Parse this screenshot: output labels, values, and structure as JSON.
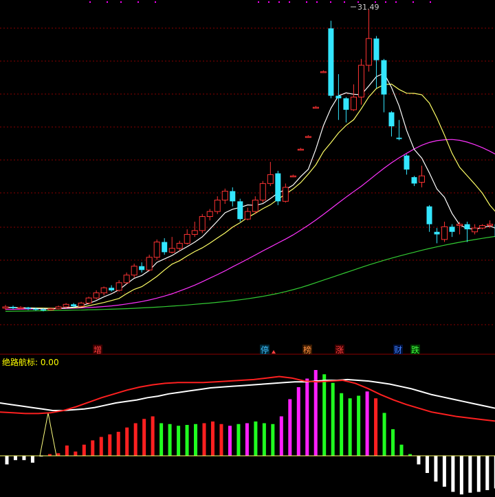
{
  "indicator": {
    "label": "绝路航标: 0.00"
  },
  "peak_label": "31.49",
  "markers": [
    {
      "text": "增",
      "color": "#ff4040",
      "bg": "#3a0000"
    },
    {
      "text": "停",
      "color": "#40c0ff",
      "bg": "#002a3a"
    },
    {
      "text": "榜",
      "color": "#ff9040",
      "bg": "#3a1a00"
    },
    {
      "text": "涨",
      "color": "#ff4040",
      "bg": "#3a0000"
    },
    {
      "text": "财",
      "color": "#4080ff",
      "bg": "#00103a"
    },
    {
      "text": "跌",
      "color": "#40ff40",
      "bg": "#003a00"
    }
  ],
  "colors": {
    "up": "#ff3333",
    "down": "#33e6ff",
    "ma5": "#ffffff",
    "ma10": "#ffff66",
    "ma20": "#ff33ff",
    "ma60": "#33cc33",
    "grid": "#8b0000",
    "hist_red": "#ff2020",
    "hist_green": "#20ff20",
    "hist_magenta": "#ff20ff",
    "hist_white": "#ffffff",
    "ind_red": "#ff2020",
    "ind_white": "#ffffff"
  },
  "chart_data": [
    {
      "type": "candlestick",
      "title": "",
      "fields": [
        "open",
        "close",
        "high",
        "low"
      ],
      "peak": 31.49,
      "candles": [
        [
          8.0,
          8.1,
          8.25,
          7.85
        ],
        [
          8.1,
          8.0,
          8.2,
          7.9
        ],
        [
          8.0,
          8.05,
          8.15,
          7.9
        ],
        [
          8.05,
          7.95,
          8.1,
          7.85
        ],
        [
          7.95,
          7.9,
          8.05,
          7.8
        ],
        [
          7.9,
          7.85,
          8.0,
          7.75
        ],
        [
          7.85,
          7.95,
          8.05,
          7.8
        ],
        [
          7.95,
          8.1,
          8.2,
          7.9
        ],
        [
          8.1,
          8.3,
          8.4,
          8.0
        ],
        [
          8.3,
          8.15,
          8.4,
          8.05
        ],
        [
          8.15,
          8.4,
          8.5,
          8.1
        ],
        [
          8.4,
          8.8,
          8.9,
          8.3
        ],
        [
          8.8,
          9.2,
          9.4,
          8.7
        ],
        [
          9.2,
          9.6,
          9.7,
          9.0
        ],
        [
          9.6,
          9.4,
          9.8,
          9.3
        ],
        [
          9.4,
          10.0,
          10.2,
          9.3
        ],
        [
          10.0,
          10.6,
          10.8,
          9.9
        ],
        [
          10.6,
          11.3,
          11.5,
          10.4
        ],
        [
          11.3,
          11.0,
          11.6,
          10.8
        ],
        [
          11.0,
          12.0,
          12.2,
          10.9
        ],
        [
          12.0,
          13.2,
          13.4,
          11.8
        ],
        [
          13.2,
          12.4,
          13.5,
          12.2
        ],
        [
          12.4,
          12.7,
          13.6,
          12.3
        ],
        [
          12.7,
          13.1,
          13.3,
          12.5
        ],
        [
          13.1,
          13.8,
          14.2,
          13.0
        ],
        [
          13.8,
          14.1,
          14.8,
          13.6
        ],
        [
          14.1,
          15.2,
          15.4,
          13.9
        ],
        [
          15.2,
          15.6,
          15.8,
          14.9
        ],
        [
          15.6,
          16.5,
          16.8,
          15.4
        ],
        [
          16.5,
          17.2,
          17.4,
          16.2
        ],
        [
          17.2,
          16.4,
          17.5,
          16.0
        ],
        [
          16.4,
          15.0,
          16.6,
          14.8
        ],
        [
          15.0,
          15.6,
          15.9,
          14.9
        ],
        [
          15.6,
          16.5,
          16.8,
          15.4
        ],
        [
          16.5,
          17.8,
          18.0,
          16.3
        ],
        [
          17.8,
          18.5,
          19.5,
          17.6
        ],
        [
          18.6,
          16.4,
          18.8,
          16.1
        ],
        [
          16.4,
          17.5,
          17.8,
          16.3
        ],
        [
          18.4,
          18.4,
          18.5,
          18.3
        ],
        [
          20.5,
          20.5,
          20.6,
          20.4
        ],
        [
          21.5,
          21.5,
          21.6,
          21.4
        ],
        [
          23.8,
          23.8,
          23.9,
          23.7
        ],
        [
          26.6,
          26.6,
          26.7,
          26.5
        ],
        [
          30.0,
          24.7,
          30.6,
          24.5
        ],
        [
          24.7,
          24.5,
          26.4,
          22.8
        ],
        [
          24.5,
          23.6,
          24.6,
          22.6
        ],
        [
          23.6,
          24.6,
          25.6,
          23.5
        ],
        [
          24.6,
          27.1,
          27.6,
          24.0
        ],
        [
          27.1,
          29.2,
          31.49,
          26.6
        ],
        [
          29.2,
          27.5,
          29.4,
          25.3
        ],
        [
          27.5,
          24.8,
          27.6,
          23.4
        ],
        [
          23.4,
          22.3,
          23.5,
          21.5
        ],
        [
          21.4,
          21.3,
          22.8,
          21.2
        ],
        [
          20.0,
          18.9,
          20.1,
          18.5
        ],
        [
          18.3,
          17.8,
          18.4,
          17.6
        ],
        [
          17.9,
          18.4,
          19.2,
          17.5
        ],
        [
          16.0,
          14.6,
          16.1,
          14.0
        ],
        [
          14.0,
          13.8,
          14.3,
          13.1
        ],
        [
          13.4,
          14.4,
          14.8,
          13.2
        ],
        [
          14.4,
          14.0,
          14.6,
          13.6
        ],
        [
          14.5,
          14.6,
          14.8,
          13.8
        ],
        [
          14.6,
          14.2,
          14.8,
          13.2
        ],
        [
          14.0,
          14.3,
          14.6,
          13.8
        ],
        [
          14.3,
          14.5,
          14.6,
          14.2
        ],
        [
          14.5,
          14.6,
          14.9,
          14.3
        ],
        [
          14.6,
          13.6,
          14.7,
          13.4
        ]
      ],
      "ma5": [
        8.06,
        8.04,
        8.02,
        8.0,
        7.97,
        7.95,
        7.95,
        7.97,
        8.02,
        8.08,
        8.19,
        8.37,
        8.6,
        8.89,
        9.13,
        9.44,
        9.91,
        10.35,
        10.57,
        10.97,
        11.6,
        11.87,
        12.14,
        12.5,
        12.83,
        13.19,
        13.61,
        14.21,
        14.85,
        15.5,
        15.78,
        15.92,
        16.12,
        16.08,
        16.22,
        16.62,
        17.05,
        17.32,
        17.68,
        18.35,
        18.92,
        20.5,
        22.35,
        23.73,
        24.7,
        24.93,
        24.82,
        24.78,
        25.47,
        26.2,
        26.48,
        25.35,
        23.9,
        21.97,
        20.48,
        19.8,
        18.64,
        17.37,
        16.71,
        15.45,
        14.55,
        14.26,
        14.21,
        14.33,
        14.46,
        14.23
      ],
      "ma10": [
        8.05,
        8.04,
        8.03,
        8.02,
        8.01,
        8.0,
        7.99,
        7.99,
        8.01,
        8.03,
        8.07,
        8.19,
        8.31,
        8.44,
        8.6,
        8.76,
        9.14,
        9.48,
        9.69,
        10.08,
        10.5,
        11.0,
        11.46,
        11.73,
        12.1,
        12.45,
        12.74,
        13.11,
        13.52,
        13.91,
        14.37,
        14.72,
        15.13,
        15.46,
        15.82,
        16.13,
        16.56,
        16.97,
        17.37,
        17.87,
        18.54,
        19.27,
        20.3,
        21.02,
        21.78,
        22.37,
        22.82,
        23.67,
        24.61,
        25.27,
        25.58,
        25.62,
        25.2,
        24.9,
        24.89,
        24.78,
        24.13,
        22.95,
        21.61,
        20.18,
        19.07,
        18.41,
        17.75,
        17.04,
        16.09,
        15.41
      ],
      "ma20": [
        7.9,
        7.91,
        7.92,
        7.93,
        7.94,
        7.95,
        7.96,
        7.97,
        7.98,
        8.0,
        8.02,
        8.05,
        8.08,
        8.13,
        8.18,
        8.24,
        8.33,
        8.42,
        8.52,
        8.64,
        8.79,
        8.95,
        9.13,
        9.35,
        9.57,
        9.81,
        10.08,
        10.36,
        10.64,
        10.93,
        11.25,
        11.55,
        11.86,
        12.18,
        12.5,
        12.81,
        13.12,
        13.43,
        13.76,
        14.13,
        14.52,
        14.93,
        15.37,
        15.82,
        16.28,
        16.73,
        17.16,
        17.58,
        18.05,
        18.53,
        19.0,
        19.43,
        19.82,
        20.18,
        20.52,
        20.81,
        21.03,
        21.17,
        21.24,
        21.26,
        21.2,
        21.06,
        20.86,
        20.62,
        20.34,
        20.02
      ],
      "ma60": [
        7.75,
        7.76,
        7.77,
        7.78,
        7.79,
        7.8,
        7.81,
        7.82,
        7.83,
        7.84,
        7.85,
        7.87,
        7.88,
        7.9,
        7.92,
        7.94,
        7.96,
        7.99,
        8.02,
        8.05,
        8.08,
        8.12,
        8.16,
        8.2,
        8.25,
        8.3,
        8.35,
        8.4,
        8.46,
        8.52,
        8.59,
        8.66,
        8.74,
        8.83,
        8.93,
        9.04,
        9.16,
        9.3,
        9.45,
        9.62,
        9.8,
        10.0,
        10.2,
        10.4,
        10.6,
        10.8,
        11.0,
        11.2,
        11.4,
        11.58,
        11.76,
        11.93,
        12.09,
        12.25,
        12.4,
        12.55,
        12.69,
        12.82,
        12.95,
        13.07,
        13.18,
        13.29,
        13.39,
        13.49,
        13.58,
        13.67
      ]
    },
    {
      "type": "bar",
      "title": "绝路航标: 0.00",
      "value": 0.0,
      "histogram": [
        {
          "v": -0.1,
          "c": "white"
        },
        {
          "v": -0.05,
          "c": "white"
        },
        {
          "v": -0.05,
          "c": "white"
        },
        {
          "v": -0.08,
          "c": "white"
        },
        {
          "v": 0,
          "c": "white"
        },
        {
          "v": 0.02,
          "c": "red"
        },
        {
          "v": 0.03,
          "c": "red"
        },
        {
          "v": 0.12,
          "c": "red"
        },
        {
          "v": 0.05,
          "c": "red"
        },
        {
          "v": 0.13,
          "c": "red"
        },
        {
          "v": 0.18,
          "c": "red"
        },
        {
          "v": 0.22,
          "c": "red"
        },
        {
          "v": 0.25,
          "c": "red"
        },
        {
          "v": 0.28,
          "c": "red"
        },
        {
          "v": 0.33,
          "c": "red"
        },
        {
          "v": 0.38,
          "c": "red"
        },
        {
          "v": 0.43,
          "c": "red"
        },
        {
          "v": 0.46,
          "c": "red"
        },
        {
          "v": 0.38,
          "c": "green"
        },
        {
          "v": 0.37,
          "c": "green"
        },
        {
          "v": 0.35,
          "c": "green"
        },
        {
          "v": 0.36,
          "c": "green"
        },
        {
          "v": 0.37,
          "c": "green"
        },
        {
          "v": 0.38,
          "c": "red"
        },
        {
          "v": 0.4,
          "c": "red"
        },
        {
          "v": 0.37,
          "c": "red"
        },
        {
          "v": 0.35,
          "c": "magenta"
        },
        {
          "v": 0.37,
          "c": "green"
        },
        {
          "v": 0.38,
          "c": "magenta"
        },
        {
          "v": 0.4,
          "c": "green"
        },
        {
          "v": 0.38,
          "c": "green"
        },
        {
          "v": 0.37,
          "c": "green"
        },
        {
          "v": 0.46,
          "c": "magenta"
        },
        {
          "v": 0.66,
          "c": "magenta"
        },
        {
          "v": 0.8,
          "c": "magenta"
        },
        {
          "v": 0.9,
          "c": "magenta"
        },
        {
          "v": 1.0,
          "c": "magenta"
        },
        {
          "v": 0.95,
          "c": "green"
        },
        {
          "v": 0.85,
          "c": "green"
        },
        {
          "v": 0.73,
          "c": "green"
        },
        {
          "v": 0.67,
          "c": "green"
        },
        {
          "v": 0.7,
          "c": "green"
        },
        {
          "v": 0.75,
          "c": "magenta"
        },
        {
          "v": 0.67,
          "c": "red"
        },
        {
          "v": 0.5,
          "c": "green"
        },
        {
          "v": 0.31,
          "c": "green"
        },
        {
          "v": 0.13,
          "c": "green"
        },
        {
          "v": 0.02,
          "c": "green"
        },
        {
          "v": -0.1,
          "c": "white"
        },
        {
          "v": -0.2,
          "c": "white"
        },
        {
          "v": -0.3,
          "c": "white"
        },
        {
          "v": -0.36,
          "c": "white"
        },
        {
          "v": -0.42,
          "c": "white"
        },
        {
          "v": -0.45,
          "c": "white"
        },
        {
          "v": -0.43,
          "c": "white"
        },
        {
          "v": -0.42,
          "c": "white"
        },
        {
          "v": -0.4,
          "c": "white"
        },
        {
          "v": -0.38,
          "c": "white"
        }
      ],
      "line_white": [
        0.7,
        0.68,
        0.66,
        0.64,
        0.62,
        0.6,
        0.6,
        0.61,
        0.62,
        0.64,
        0.67,
        0.7,
        0.72,
        0.74,
        0.77,
        0.79,
        0.82,
        0.84,
        0.86,
        0.88,
        0.9,
        0.91,
        0.92,
        0.93,
        0.94,
        0.95,
        0.96,
        0.97,
        0.98,
        0.98,
        0.99,
        1.0,
        1.0,
        1.01,
        1.0,
        0.99,
        0.97,
        0.95,
        0.92,
        0.89,
        0.85,
        0.81,
        0.78,
        0.75,
        0.72,
        0.69,
        0.66,
        0.63
      ],
      "line_red": [
        0.58,
        0.57,
        0.56,
        0.56,
        0.57,
        0.6,
        0.65,
        0.71,
        0.77,
        0.82,
        0.87,
        0.91,
        0.94,
        0.96,
        0.97,
        0.97,
        0.97,
        0.98,
        0.99,
        1.0,
        1.01,
        1.03,
        1.05,
        1.03,
        0.99,
        0.98,
        0.99,
        1.0,
        0.96,
        0.89,
        0.81,
        0.74,
        0.68,
        0.63,
        0.58,
        0.55,
        0.52,
        0.5,
        0.48,
        0.46
      ],
      "spike": {
        "v": 0.5
      }
    }
  ]
}
